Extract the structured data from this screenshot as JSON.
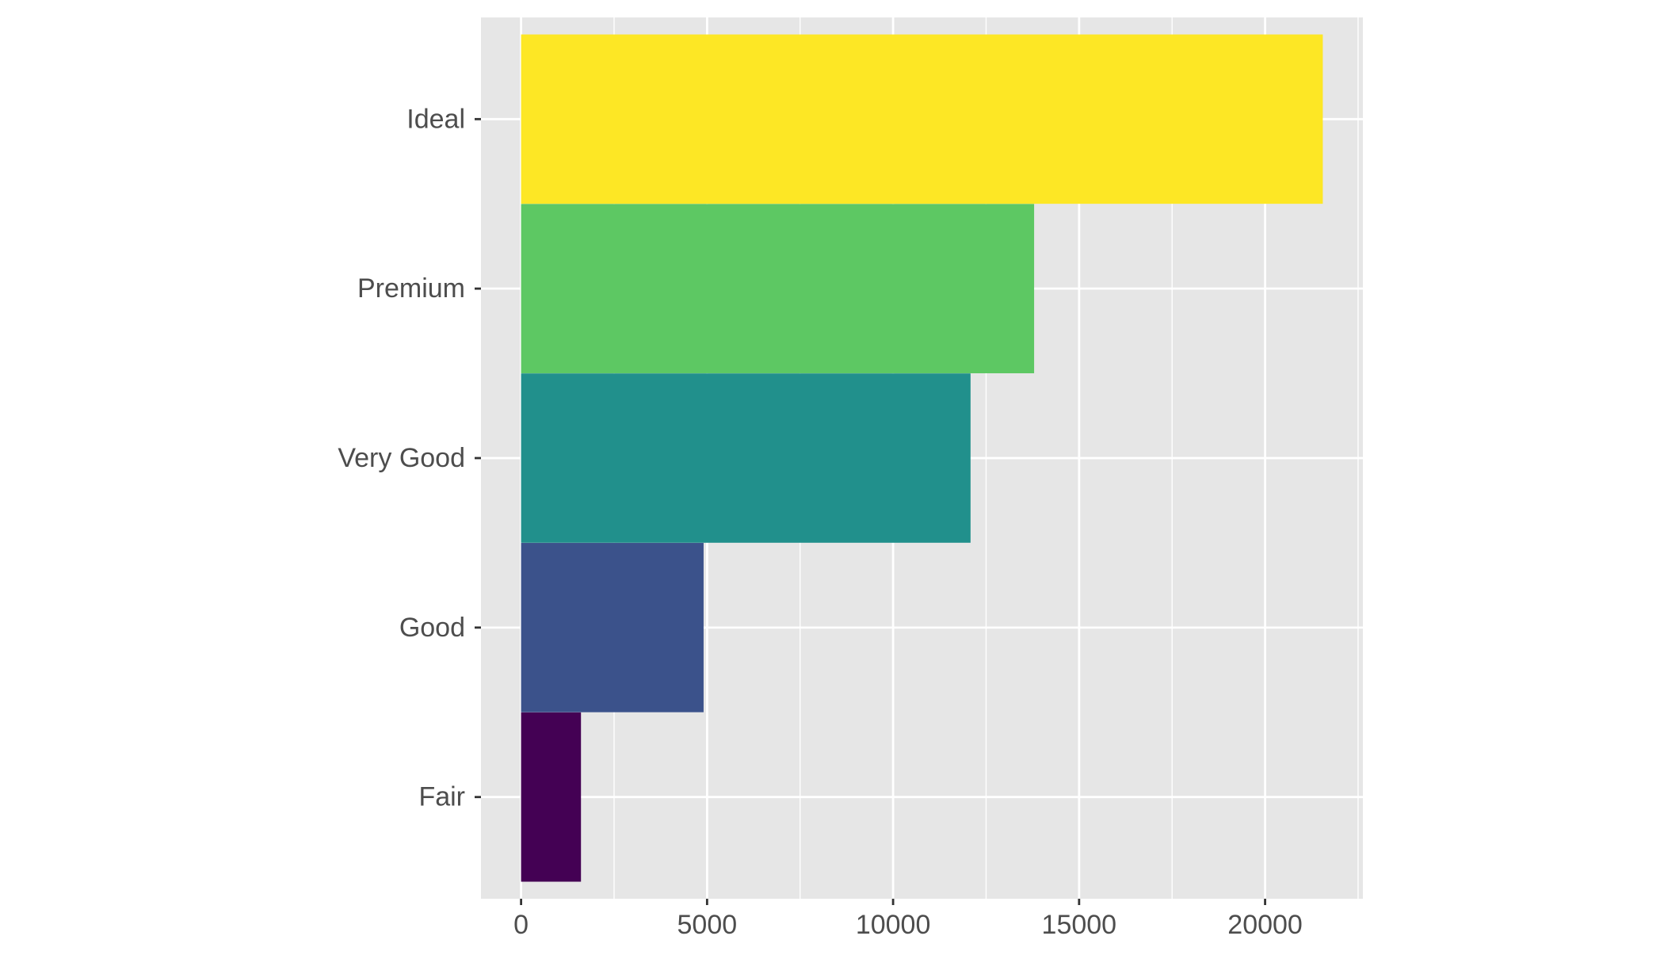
{
  "chart_data": {
    "type": "bar",
    "orientation": "horizontal",
    "categories": [
      "Fair",
      "Good",
      "Very Good",
      "Premium",
      "Ideal"
    ],
    "values": [
      1610,
      4906,
      12082,
      13791,
      21551
    ],
    "colors": [
      "#440154",
      "#3B528B",
      "#21908C",
      "#5DC863",
      "#FDE725"
    ],
    "x_ticks": [
      "0",
      "5000",
      "10000",
      "15000",
      "20000"
    ],
    "xlim": [
      -1078,
      22629
    ],
    "grid": true,
    "panel_background": "#E6E6E6",
    "grid_color": "#FFFFFF",
    "tick_label_color": "#4D4D4D"
  }
}
